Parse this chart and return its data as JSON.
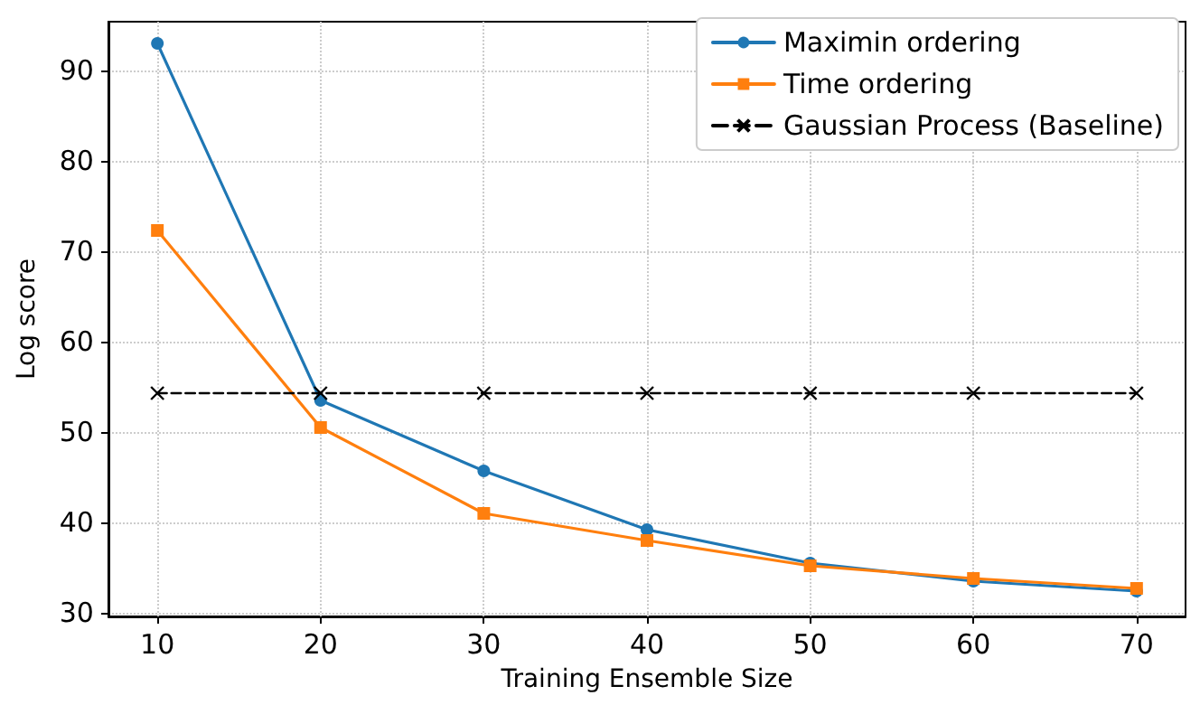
{
  "chart_data": {
    "type": "line",
    "xlabel": "Training Ensemble Size",
    "ylabel": "Log score",
    "x": [
      10,
      20,
      30,
      40,
      50,
      60,
      70
    ],
    "series": [
      {
        "name": "Maximin ordering",
        "color": "#1f77b4",
        "marker": "circle",
        "line_style": "solid",
        "values": [
          93,
          53.5,
          45.7,
          39.2,
          35.5,
          33.5,
          32.4
        ]
      },
      {
        "name": "Time ordering",
        "color": "#ff7f0e",
        "marker": "square",
        "line_style": "solid",
        "values": [
          72.3,
          50.5,
          41,
          38,
          35.2,
          33.8,
          32.7
        ]
      },
      {
        "name": "Gaussian Process (Baseline)",
        "color": "#000000",
        "marker": "cross",
        "line_style": "dashed",
        "values": [
          54.3,
          54.3,
          54.3,
          54.3,
          54.3,
          54.3,
          54.3
        ]
      }
    ],
    "xlim": [
      7,
      73
    ],
    "xticks": [
      10,
      20,
      30,
      40,
      50,
      60,
      70
    ],
    "ylim": [
      29.6,
      95.4
    ],
    "yticks": [
      30,
      40,
      50,
      60,
      70,
      80,
      90
    ],
    "grid": true,
    "legend": "top right"
  }
}
